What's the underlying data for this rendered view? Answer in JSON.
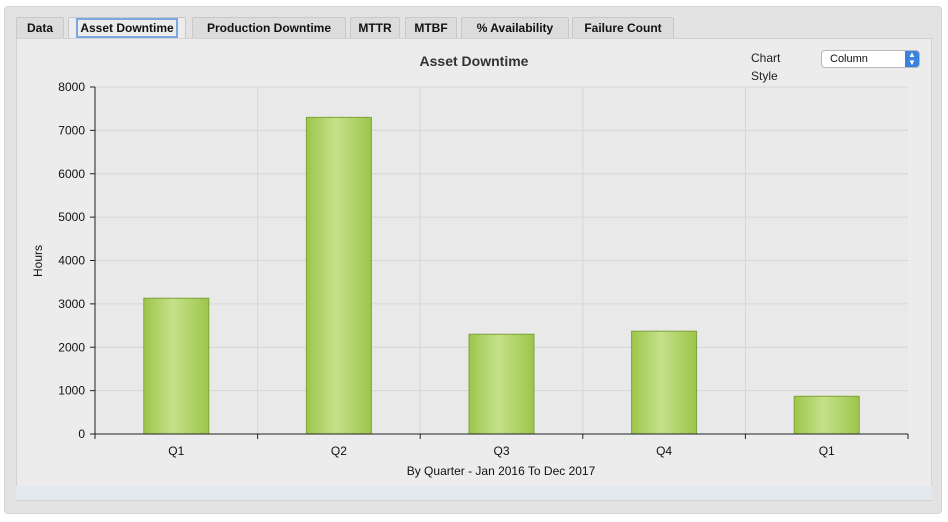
{
  "tabs": [
    {
      "label": "Data"
    },
    {
      "label": "Asset Downtime"
    },
    {
      "label": "Production Downtime"
    },
    {
      "label": "MTTR"
    },
    {
      "label": "MTBF"
    },
    {
      "label": "% Availability"
    },
    {
      "label": "Failure Count"
    }
  ],
  "active_tab": "Asset Downtime",
  "chart_style": {
    "label": "Chart Style",
    "selected": "Column",
    "icon": "updown-chevron-icon"
  },
  "chart_data": {
    "type": "bar",
    "title": "Asset Downtime",
    "xlabel": "By Quarter - Jan 2016 To Dec 2017",
    "ylabel": "Hours",
    "categories": [
      "Q1",
      "Q2",
      "Q3",
      "Q4",
      "Q1"
    ],
    "values": [
      3130,
      7300,
      2300,
      2370,
      870
    ],
    "ylim": [
      0,
      8000
    ],
    "yticks": [
      0,
      1000,
      2000,
      3000,
      4000,
      5000,
      6000,
      7000,
      8000
    ],
    "grid": true,
    "bar_color": "#a6cc55"
  }
}
